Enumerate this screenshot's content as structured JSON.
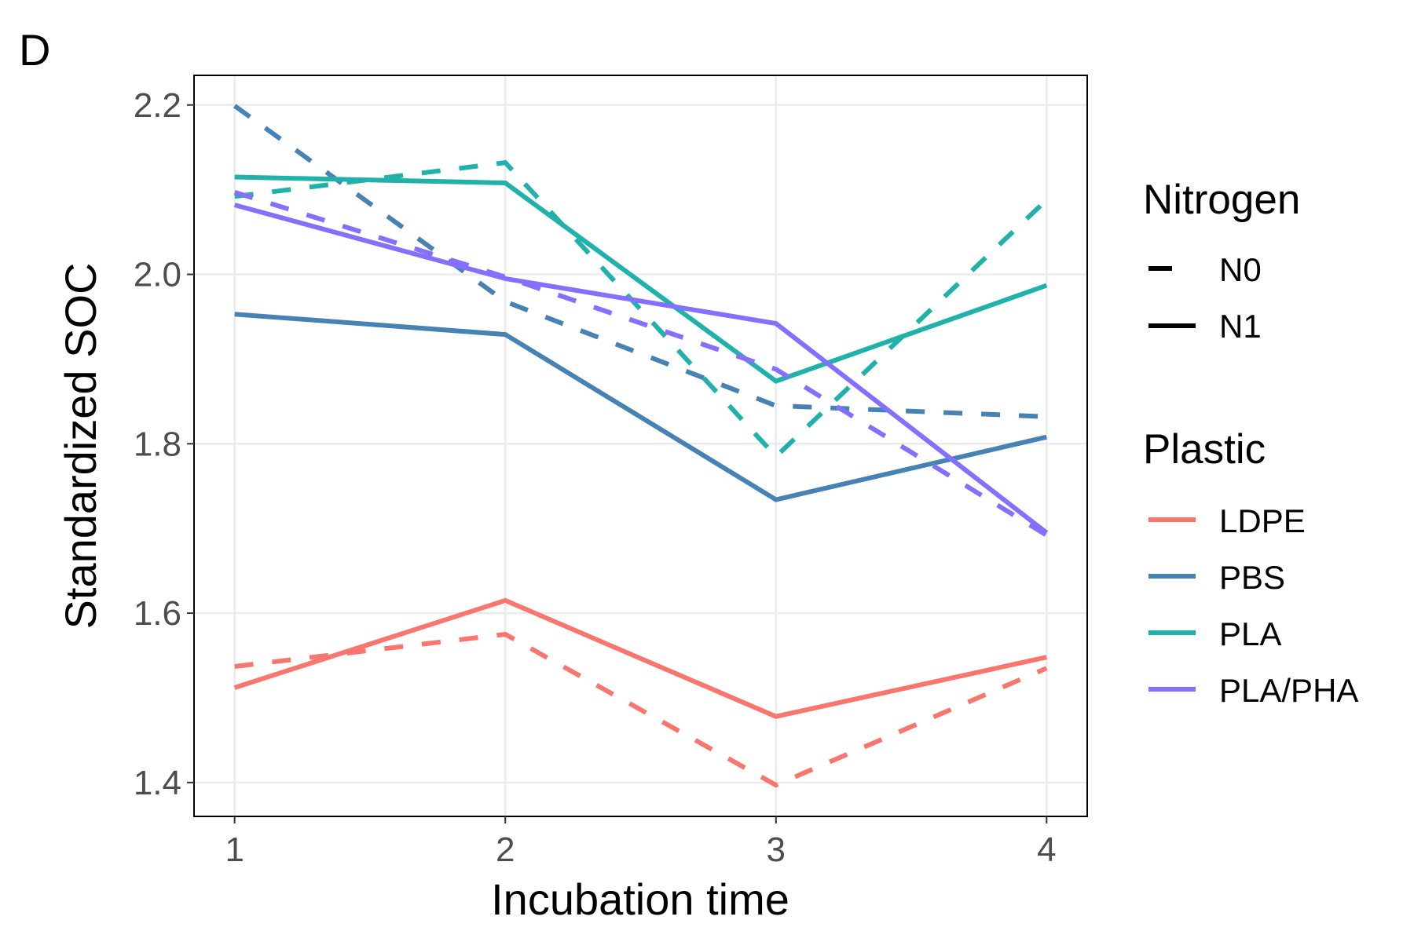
{
  "panel_label": "D",
  "chart_data": {
    "type": "line",
    "title": "",
    "xlabel": "Incubation time",
    "ylabel": "Standardized SOC",
    "x": [
      1,
      2,
      3,
      4
    ],
    "xticks": [
      "1",
      "2",
      "3",
      "4"
    ],
    "yticks": [
      "1.4",
      "1.6",
      "1.8",
      "2.0",
      "2.2"
    ],
    "xlim": [
      0.85,
      4.15
    ],
    "ylim": [
      1.36,
      2.235
    ],
    "grid": true,
    "legend_placement": "right",
    "legends": {
      "nitrogen": {
        "title": "Nitrogen",
        "entries": [
          {
            "label": "N0",
            "linetype": "dashed"
          },
          {
            "label": "N1",
            "linetype": "solid"
          }
        ]
      },
      "plastic": {
        "title": "Plastic",
        "entries": [
          {
            "label": "LDPE",
            "color": "#F8766D"
          },
          {
            "label": "PBS",
            "color": "#4682B4"
          },
          {
            "label": "PLA",
            "color": "#20B2AA"
          },
          {
            "label": "PLA/PHA",
            "color": "#8470FF"
          }
        ]
      }
    },
    "series": [
      {
        "plastic": "LDPE",
        "nitrogen": "N0",
        "color": "#F8766D",
        "linetype": "dashed",
        "values": [
          1.537,
          1.575,
          1.397,
          1.535
        ]
      },
      {
        "plastic": "LDPE",
        "nitrogen": "N1",
        "color": "#F8766D",
        "linetype": "solid",
        "values": [
          1.512,
          1.615,
          1.478,
          1.548
        ]
      },
      {
        "plastic": "PBS",
        "nitrogen": "N0",
        "color": "#4682B4",
        "linetype": "dashed",
        "values": [
          2.199,
          1.968,
          1.845,
          1.832
        ]
      },
      {
        "plastic": "PBS",
        "nitrogen": "N1",
        "color": "#4682B4",
        "linetype": "solid",
        "values": [
          1.953,
          1.929,
          1.734,
          1.808
        ]
      },
      {
        "plastic": "PLA",
        "nitrogen": "N0",
        "color": "#20B2AA",
        "linetype": "dashed",
        "values": [
          2.092,
          2.132,
          1.785,
          2.088
        ]
      },
      {
        "plastic": "PLA",
        "nitrogen": "N1",
        "color": "#20B2AA",
        "linetype": "solid",
        "values": [
          2.115,
          2.108,
          1.874,
          1.987
        ]
      },
      {
        "plastic": "PLA/PHA",
        "nitrogen": "N0",
        "color": "#8470FF",
        "linetype": "dashed",
        "values": [
          2.097,
          1.997,
          1.888,
          1.692
        ]
      },
      {
        "plastic": "PLA/PHA",
        "nitrogen": "N1",
        "color": "#8470FF",
        "linetype": "solid",
        "values": [
          2.082,
          1.995,
          1.942,
          1.695
        ]
      }
    ]
  }
}
